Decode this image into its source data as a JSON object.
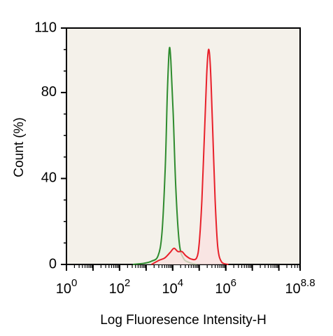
{
  "chart_data": {
    "type": "area",
    "xlabel": "Log Fluoresence Intensity-H",
    "ylabel": "Count  (%)",
    "xscale": "log10",
    "xlim_exp": [
      0,
      8.8
    ],
    "ylim": [
      0,
      110
    ],
    "yticks": [
      {
        "value": 0,
        "label": "0"
      },
      {
        "value": 40,
        "label": "40"
      },
      {
        "value": 80,
        "label": "80"
      },
      {
        "value": 110,
        "label": "110"
      }
    ],
    "xticks": [
      {
        "base": "10",
        "exp": "0",
        "value": 0
      },
      {
        "base": "10",
        "exp": "2",
        "value": 2
      },
      {
        "base": "10",
        "exp": "4",
        "value": 4
      },
      {
        "base": "10",
        "exp": "6",
        "value": 6
      },
      {
        "base": "10",
        "exp": "8.8",
        "value": 8.8
      }
    ],
    "grid": false,
    "legend": "none",
    "series": [
      {
        "color": "#2e8b2e",
        "fill": "#e8f2e2",
        "points": [
          [
            2.5,
            0
          ],
          [
            2.9,
            0.5
          ],
          [
            3.2,
            1.5
          ],
          [
            3.45,
            4
          ],
          [
            3.6,
            15
          ],
          [
            3.72,
            45
          ],
          [
            3.8,
            80
          ],
          [
            3.87,
            100
          ],
          [
            3.93,
            95
          ],
          [
            4.02,
            70
          ],
          [
            4.12,
            35
          ],
          [
            4.25,
            10
          ],
          [
            4.4,
            3
          ],
          [
            4.6,
            1
          ],
          [
            4.9,
            0
          ]
        ]
      },
      {
        "color": "#e8202a",
        "fill": "#fbe0e0",
        "points": [
          [
            3.2,
            0
          ],
          [
            3.5,
            2
          ],
          [
            3.7,
            3
          ],
          [
            3.9,
            5.5
          ],
          [
            4.05,
            7.5
          ],
          [
            4.2,
            6
          ],
          [
            4.35,
            6
          ],
          [
            4.5,
            4
          ],
          [
            4.7,
            2.5
          ],
          [
            4.9,
            3
          ],
          [
            5.0,
            10
          ],
          [
            5.1,
            30
          ],
          [
            5.2,
            62
          ],
          [
            5.28,
            88
          ],
          [
            5.35,
            100
          ],
          [
            5.42,
            92
          ],
          [
            5.5,
            65
          ],
          [
            5.6,
            30
          ],
          [
            5.7,
            8
          ],
          [
            5.85,
            1
          ],
          [
            6.1,
            0
          ]
        ]
      }
    ]
  }
}
